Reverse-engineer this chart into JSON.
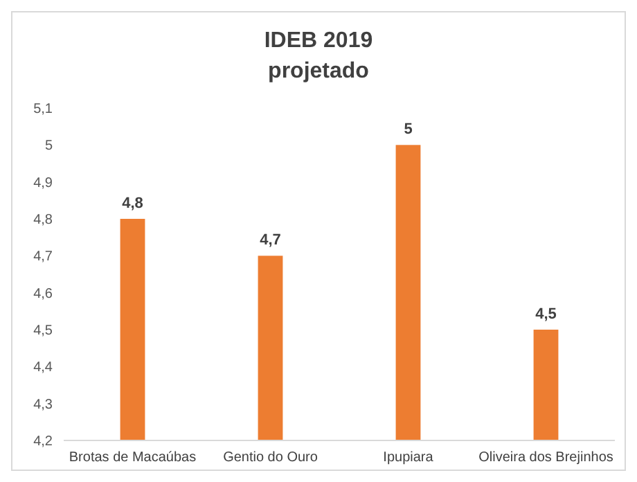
{
  "chart_data": {
    "type": "bar",
    "title": "IDEB 2019",
    "subtitle": "projetado",
    "categories": [
      "Brotas de Macaúbas",
      "Gentio do Ouro",
      "Ipupiara",
      "Oliveira dos Brejinhos"
    ],
    "values": [
      4.8,
      4.7,
      5,
      4.5
    ],
    "color": "#ed7d31",
    "value_labels": [
      "4,8",
      "4,7",
      "5",
      "4,5"
    ],
    "ylim": [
      4.2,
      5.1
    ],
    "yticks": [
      {
        "value": 4.2,
        "label": "4,2"
      },
      {
        "value": 4.3,
        "label": "4,3"
      },
      {
        "value": 4.4,
        "label": "4,4"
      },
      {
        "value": 4.5,
        "label": "4,5"
      },
      {
        "value": 4.6,
        "label": "4,6"
      },
      {
        "value": 4.7,
        "label": "4,7"
      },
      {
        "value": 4.8,
        "label": "4,8"
      },
      {
        "value": 4.9,
        "label": "4,9"
      },
      5,
      {
        "value": 5.1,
        "label": "5,1"
      }
    ],
    "grid": false
  }
}
